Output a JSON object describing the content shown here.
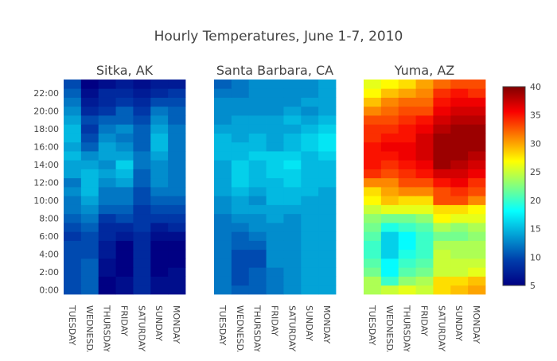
{
  "chart_data": {
    "type": "heatmap",
    "title": "Hourly Temperatures, June 1-7, 2010",
    "colorbar": {
      "min": 5,
      "max": 40,
      "ticks": [
        5,
        10,
        15,
        20,
        25,
        30,
        35,
        40
      ],
      "colorscale": "Jet"
    },
    "x_categories": [
      "TUESDAY",
      "WEDNESDAY",
      "THURSDAY",
      "FRIDAY",
      "SATURDAY",
      "SUNDAY",
      "MONDAY"
    ],
    "y_categories": [
      "0:00",
      "1:00",
      "2:00",
      "3:00",
      "4:00",
      "5:00",
      "6:00",
      "7:00",
      "8:00",
      "9:00",
      "10:00",
      "11:00",
      "12:00",
      "13:00",
      "14:00",
      "15:00",
      "16:00",
      "17:00",
      "18:00",
      "19:00",
      "20:00",
      "21:00",
      "22:00",
      "23:00"
    ],
    "y_tick_labels": [
      "0:00",
      "2:00",
      "4:00",
      "6:00",
      "8:00",
      "10:00",
      "12:00",
      "14:00",
      "16:00",
      "18:00",
      "20:00",
      "22:00"
    ],
    "panels": [
      {
        "name": "Sitka, AK",
        "z": [
          [
            10,
            11,
            5,
            6,
            8,
            6,
            6
          ],
          [
            10,
            11,
            5,
            6,
            8,
            6,
            6
          ],
          [
            10,
            11,
            6,
            5,
            8,
            5,
            6
          ],
          [
            10,
            11,
            6,
            5,
            8,
            5,
            5
          ],
          [
            10,
            10,
            7,
            5,
            8,
            5,
            5
          ],
          [
            10,
            10,
            7,
            5,
            8,
            5,
            5
          ],
          [
            9,
            10,
            8,
            7,
            8,
            6,
            6
          ],
          [
            10,
            11,
            8,
            8,
            9,
            7,
            8
          ],
          [
            11,
            12,
            9,
            10,
            9,
            9,
            9
          ],
          [
            12,
            13,
            11,
            11,
            9,
            10,
            10
          ],
          [
            12,
            14,
            12,
            12,
            10,
            11,
            11
          ],
          [
            13,
            15,
            12,
            12,
            10,
            12,
            12
          ],
          [
            12,
            15,
            13,
            14,
            11,
            13,
            12
          ],
          [
            14,
            15,
            14,
            15,
            11,
            13,
            12
          ],
          [
            14,
            14,
            13,
            16,
            12,
            13,
            12
          ],
          [
            15,
            13,
            14,
            14,
            12,
            14,
            12
          ],
          [
            14,
            11,
            14,
            13,
            11,
            15,
            12
          ],
          [
            15,
            10,
            13,
            12,
            11,
            15,
            12
          ],
          [
            15,
            9,
            12,
            13,
            11,
            14,
            12
          ],
          [
            14,
            10,
            11,
            11,
            10,
            13,
            11
          ],
          [
            13,
            8,
            9,
            11,
            9,
            12,
            11
          ],
          [
            12,
            7,
            8,
            9,
            8,
            10,
            10
          ],
          [
            11,
            6,
            8,
            8,
            7,
            8,
            9
          ],
          [
            10,
            5,
            6,
            7,
            6,
            7,
            7
          ]
        ]
      },
      {
        "name": "Santa Barbara, CA",
        "z": [
          [
            12,
            11,
            11,
            12,
            13,
            14,
            14
          ],
          [
            12,
            10,
            11,
            12,
            13,
            14,
            14
          ],
          [
            12,
            10,
            11,
            12,
            13,
            14,
            14
          ],
          [
            12,
            10,
            10,
            13,
            13,
            14,
            14
          ],
          [
            12,
            10,
            10,
            13,
            13,
            14,
            14
          ],
          [
            12,
            11,
            11,
            13,
            13,
            14,
            14
          ],
          [
            12,
            11,
            12,
            13,
            13,
            14,
            14
          ],
          [
            12,
            12,
            13,
            13,
            13,
            14,
            14
          ],
          [
            12,
            13,
            13,
            14,
            13,
            14,
            14
          ],
          [
            13,
            14,
            14,
            14,
            14,
            14,
            14
          ],
          [
            13,
            14,
            13,
            15,
            15,
            14,
            14
          ],
          [
            14,
            15,
            14,
            15,
            15,
            15,
            14
          ],
          [
            14,
            16,
            15,
            15,
            16,
            15,
            15
          ],
          [
            14,
            16,
            15,
            16,
            16,
            15,
            15
          ],
          [
            14,
            16,
            15,
            16,
            17,
            15,
            15
          ],
          [
            15,
            15,
            16,
            16,
            16,
            15,
            16
          ],
          [
            15,
            15,
            15,
            14,
            15,
            16,
            17
          ],
          [
            15,
            14,
            15,
            14,
            15,
            16,
            17
          ],
          [
            14,
            14,
            14,
            14,
            14,
            15,
            16
          ],
          [
            13,
            14,
            14,
            14,
            15,
            14,
            15
          ],
          [
            13,
            13,
            13,
            13,
            14,
            13,
            14
          ],
          [
            13,
            13,
            13,
            13,
            13,
            14,
            14
          ],
          [
            12,
            12,
            13,
            13,
            13,
            13,
            14
          ],
          [
            11,
            12,
            13,
            13,
            13,
            13,
            14
          ]
        ]
      },
      {
        "name": "Yuma, AZ",
        "z": [
          [
            24,
            25,
            26,
            25,
            28,
            29,
            30
          ],
          [
            24,
            20,
            23,
            24,
            28,
            28,
            29
          ],
          [
            22,
            18,
            21,
            22,
            25,
            25,
            26
          ],
          [
            21,
            18,
            20,
            21,
            25,
            25,
            25
          ],
          [
            20,
            16,
            19,
            20,
            25,
            24,
            24
          ],
          [
            20,
            16,
            18,
            20,
            24,
            24,
            24
          ],
          [
            21,
            16,
            18,
            20,
            22,
            22,
            23
          ],
          [
            22,
            19,
            20,
            21,
            24,
            23,
            24
          ],
          [
            23,
            22,
            22,
            23,
            27,
            26,
            26
          ],
          [
            25,
            26,
            26,
            26,
            28,
            28,
            27
          ],
          [
            27,
            29,
            28,
            28,
            33,
            33,
            31
          ],
          [
            28,
            30,
            31,
            31,
            33,
            34,
            33
          ],
          [
            31,
            31,
            33,
            33,
            35,
            36,
            34
          ],
          [
            34,
            33,
            34,
            35,
            37,
            37,
            36
          ],
          [
            35,
            34,
            35,
            36,
            39,
            38,
            37
          ],
          [
            35,
            35,
            36,
            37,
            39,
            39,
            38
          ],
          [
            35,
            36,
            36,
            37,
            39,
            39,
            39
          ],
          [
            34,
            35,
            35,
            37,
            39,
            39,
            39
          ],
          [
            34,
            34,
            35,
            36,
            38,
            39,
            39
          ],
          [
            33,
            33,
            34,
            35,
            37,
            38,
            38
          ],
          [
            31,
            32,
            33,
            33,
            36,
            37,
            37
          ],
          [
            29,
            31,
            32,
            32,
            35,
            36,
            36
          ],
          [
            27,
            29,
            30,
            31,
            34,
            35,
            34
          ],
          [
            26,
            27,
            28,
            30,
            32,
            33,
            33
          ]
        ]
      }
    ]
  }
}
